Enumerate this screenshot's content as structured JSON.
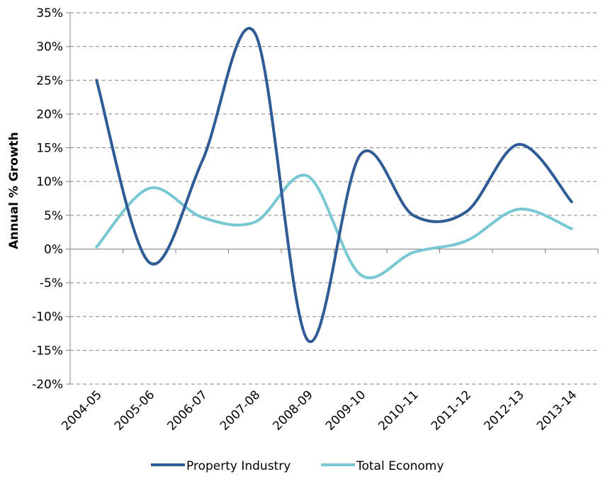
{
  "chart_data": {
    "type": "line",
    "smooth": true,
    "categories": [
      "2004-05",
      "2005-06",
      "2006-07",
      "2007-08",
      "2008-09",
      "2009-10",
      "2010-11",
      "2011-12",
      "2012-13",
      "2013-14"
    ],
    "series": [
      {
        "name": "Property Industry",
        "color": "#2F5B96",
        "values": [
          25,
          -2,
          13,
          32,
          -13.5,
          14,
          5,
          5.5,
          15.5,
          7
        ]
      },
      {
        "name": "Total Economy",
        "color": "#78C8D4",
        "values": [
          0.3,
          9,
          4.7,
          4,
          10.8,
          -3.8,
          -0.5,
          1.2,
          5.9,
          3
        ]
      }
    ],
    "title": "",
    "xlabel": "",
    "ylabel": "Annual % Growth",
    "ylim": [
      -20,
      35
    ],
    "ytick_step": 5,
    "ytick_labels": [
      "-20%",
      "-15%",
      "-10%",
      "-5%",
      "0%",
      "5%",
      "10%",
      "15%",
      "20%",
      "25%",
      "30%",
      "35%"
    ],
    "grid": "horizontal dashed",
    "legend_position": "bottom"
  }
}
